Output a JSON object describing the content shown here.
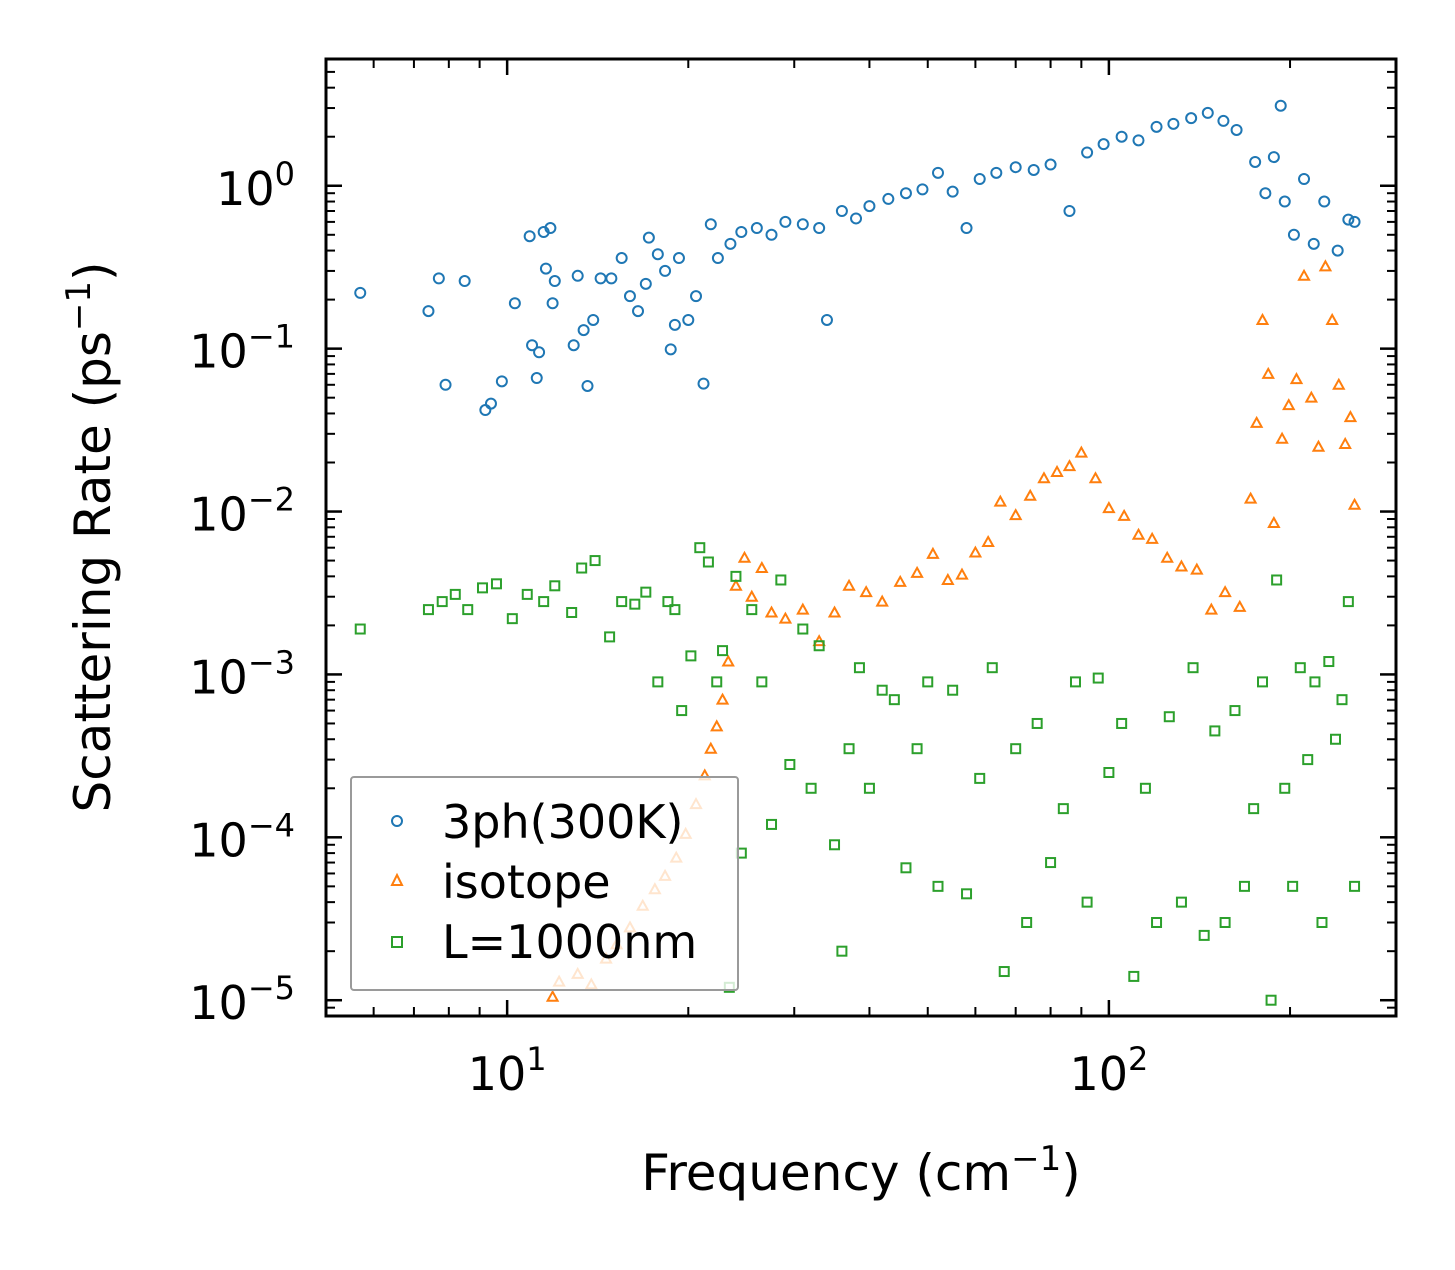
{
  "chart_data": {
    "type": "scatter",
    "xscale": "log",
    "yscale": "log",
    "xlim": [
      5.0,
      300.0
    ],
    "ylim": [
      8e-06,
      6.0
    ],
    "xlabel_main": "Frequency (cm",
    "xlabel_sup": "−1",
    "xlabel_end": ")",
    "ylabel_main": "Scattering Rate (ps",
    "ylabel_sup": "−1",
    "ylabel_end": ")",
    "x_ticks": [
      {
        "value": 10,
        "base": "10",
        "exp": "1"
      },
      {
        "value": 100,
        "base": "10",
        "exp": "2"
      }
    ],
    "y_ticks": [
      {
        "value": 1,
        "base": "10",
        "exp": "0"
      },
      {
        "value": 0.1,
        "base": "10",
        "exp": "−1"
      },
      {
        "value": 0.01,
        "base": "10",
        "exp": "−2"
      },
      {
        "value": 0.001,
        "base": "10",
        "exp": "−3"
      },
      {
        "value": 0.0001,
        "base": "10",
        "exp": "−4"
      },
      {
        "value": 1e-05,
        "base": "10",
        "exp": "−5"
      }
    ],
    "legend_position": "lower-left",
    "series": [
      {
        "name": "3ph(300K)",
        "marker": "circle",
        "color": "#1f77b4",
        "points": [
          [
            5.7,
            0.22
          ],
          [
            7.4,
            0.17
          ],
          [
            7.7,
            0.27
          ],
          [
            7.9,
            0.06
          ],
          [
            8.5,
            0.26
          ],
          [
            9.2,
            0.042
          ],
          [
            9.4,
            0.046
          ],
          [
            9.8,
            0.063
          ],
          [
            10.3,
            0.19
          ],
          [
            10.9,
            0.49
          ],
          [
            11.0,
            0.105
          ],
          [
            11.2,
            0.066
          ],
          [
            11.3,
            0.095
          ],
          [
            11.5,
            0.52
          ],
          [
            11.6,
            0.31
          ],
          [
            11.8,
            0.55
          ],
          [
            11.9,
            0.19
          ],
          [
            12.0,
            0.26
          ],
          [
            12.9,
            0.105
          ],
          [
            13.1,
            0.28
          ],
          [
            13.4,
            0.13
          ],
          [
            13.6,
            0.059
          ],
          [
            13.9,
            0.15
          ],
          [
            14.3,
            0.27
          ],
          [
            14.9,
            0.27
          ],
          [
            15.5,
            0.36
          ],
          [
            16.0,
            0.21
          ],
          [
            16.5,
            0.17
          ],
          [
            17.0,
            0.25
          ],
          [
            17.2,
            0.48
          ],
          [
            17.8,
            0.38
          ],
          [
            18.3,
            0.3
          ],
          [
            18.7,
            0.099
          ],
          [
            19.0,
            0.14
          ],
          [
            19.3,
            0.36
          ],
          [
            20.0,
            0.15
          ],
          [
            20.6,
            0.21
          ],
          [
            21.2,
            0.061
          ],
          [
            21.8,
            0.58
          ],
          [
            22.4,
            0.36
          ],
          [
            23.5,
            0.44
          ],
          [
            24.5,
            0.52
          ],
          [
            26.0,
            0.55
          ],
          [
            27.5,
            0.5
          ],
          [
            29.0,
            0.6
          ],
          [
            31.0,
            0.58
          ],
          [
            33.0,
            0.55
          ],
          [
            34.0,
            0.15
          ],
          [
            36.0,
            0.7
          ],
          [
            38.0,
            0.63
          ],
          [
            40.0,
            0.75
          ],
          [
            43.0,
            0.83
          ],
          [
            46.0,
            0.9
          ],
          [
            49.0,
            0.95
          ],
          [
            52.0,
            1.2
          ],
          [
            55.0,
            0.92
          ],
          [
            58.0,
            0.55
          ],
          [
            61.0,
            1.1
          ],
          [
            65.0,
            1.2
          ],
          [
            70.0,
            1.3
          ],
          [
            75.0,
            1.25
          ],
          [
            80.0,
            1.35
          ],
          [
            86.0,
            0.7
          ],
          [
            92.0,
            1.6
          ],
          [
            98.0,
            1.8
          ],
          [
            105.0,
            2.0
          ],
          [
            112.0,
            1.9
          ],
          [
            120.0,
            2.3
          ],
          [
            128.0,
            2.4
          ],
          [
            137.0,
            2.6
          ],
          [
            146.0,
            2.8
          ],
          [
            155.0,
            2.5
          ],
          [
            163.0,
            2.2
          ],
          [
            175.0,
            1.4
          ],
          [
            182.0,
            0.9
          ],
          [
            188.0,
            1.5
          ],
          [
            193.0,
            3.1
          ],
          [
            196.0,
            0.8
          ],
          [
            203.0,
            0.5
          ],
          [
            211.0,
            1.1
          ],
          [
            219.0,
            0.44
          ],
          [
            228.0,
            0.8
          ],
          [
            240.0,
            0.4
          ],
          [
            250.0,
            0.62
          ],
          [
            256.0,
            0.6
          ]
        ]
      },
      {
        "name": "isotope",
        "marker": "triangle",
        "color": "#ff7f0e",
        "points": [
          [
            11.9,
            1.05e-05
          ],
          [
            12.2,
            1.3e-05
          ],
          [
            13.1,
            1.45e-05
          ],
          [
            13.8,
            1.25e-05
          ],
          [
            14.6,
            1.8e-05
          ],
          [
            15.2,
            2.2e-05
          ],
          [
            16.0,
            2.8e-05
          ],
          [
            16.8,
            3.8e-05
          ],
          [
            17.6,
            4.8e-05
          ],
          [
            18.3,
            5.8e-05
          ],
          [
            19.1,
            7.5e-05
          ],
          [
            19.8,
            0.000105
          ],
          [
            20.6,
            0.00016
          ],
          [
            21.3,
            0.00024
          ],
          [
            21.8,
            0.00035
          ],
          [
            22.3,
            0.00048
          ],
          [
            22.8,
            0.0007
          ],
          [
            23.3,
            0.0012
          ],
          [
            24.0,
            0.0035
          ],
          [
            24.8,
            0.0052
          ],
          [
            25.5,
            0.003
          ],
          [
            26.5,
            0.0045
          ],
          [
            27.5,
            0.0024
          ],
          [
            29.0,
            0.0022
          ],
          [
            31.0,
            0.0025
          ],
          [
            33.0,
            0.0016
          ],
          [
            35.0,
            0.0024
          ],
          [
            37.0,
            0.0035
          ],
          [
            39.5,
            0.0032
          ],
          [
            42.0,
            0.0028
          ],
          [
            45.0,
            0.0037
          ],
          [
            48.0,
            0.0042
          ],
          [
            51.0,
            0.0055
          ],
          [
            54.0,
            0.0038
          ],
          [
            57.0,
            0.0041
          ],
          [
            60.0,
            0.0056
          ],
          [
            63.0,
            0.0065
          ],
          [
            66.0,
            0.0115
          ],
          [
            70.0,
            0.0095
          ],
          [
            74.0,
            0.0125
          ],
          [
            78.0,
            0.016
          ],
          [
            82.0,
            0.0175
          ],
          [
            86.0,
            0.019
          ],
          [
            90.0,
            0.023
          ],
          [
            95.0,
            0.016
          ],
          [
            100.0,
            0.0105
          ],
          [
            106.0,
            0.0094
          ],
          [
            112.0,
            0.0072
          ],
          [
            118.0,
            0.0068
          ],
          [
            125.0,
            0.0052
          ],
          [
            132.0,
            0.0046
          ],
          [
            140.0,
            0.0044
          ],
          [
            148.0,
            0.0025
          ],
          [
            156.0,
            0.0032
          ],
          [
            165.0,
            0.0026
          ],
          [
            172.0,
            0.012
          ],
          [
            176.0,
            0.035
          ],
          [
            180.0,
            0.15
          ],
          [
            184.0,
            0.07
          ],
          [
            188.0,
            0.0085
          ],
          [
            194.0,
            0.028
          ],
          [
            199.0,
            0.045
          ],
          [
            205.0,
            0.065
          ],
          [
            211.0,
            0.28
          ],
          [
            217.0,
            0.05
          ],
          [
            223.0,
            0.025
          ],
          [
            229.0,
            0.32
          ],
          [
            235.0,
            0.15
          ],
          [
            241.0,
            0.06
          ],
          [
            247.0,
            0.026
          ],
          [
            252.0,
            0.038
          ],
          [
            256.0,
            0.011
          ]
        ]
      },
      {
        "name": "L=1000nm",
        "marker": "square",
        "color": "#2ca02c",
        "points": [
          [
            5.7,
            0.0019
          ],
          [
            7.4,
            0.0025
          ],
          [
            7.8,
            0.0028
          ],
          [
            8.2,
            0.0031
          ],
          [
            8.6,
            0.0025
          ],
          [
            9.1,
            0.0034
          ],
          [
            9.6,
            0.0036
          ],
          [
            10.2,
            0.0022
          ],
          [
            10.8,
            0.0031
          ],
          [
            11.5,
            0.0028
          ],
          [
            12.0,
            0.0035
          ],
          [
            12.8,
            0.0024
          ],
          [
            13.3,
            0.0045
          ],
          [
            14.0,
            0.005
          ],
          [
            14.8,
            0.0017
          ],
          [
            15.5,
            0.0028
          ],
          [
            16.3,
            0.0027
          ],
          [
            17.0,
            0.0032
          ],
          [
            17.8,
            0.0009
          ],
          [
            18.5,
            0.0028
          ],
          [
            19.0,
            0.0025
          ],
          [
            19.5,
            0.0006
          ],
          [
            20.2,
            0.0013
          ],
          [
            20.9,
            0.006
          ],
          [
            21.6,
            0.0049
          ],
          [
            22.3,
            0.0009
          ],
          [
            22.8,
            0.0014
          ],
          [
            23.4,
            1.2e-05
          ],
          [
            24.0,
            0.004
          ],
          [
            24.5,
            8e-05
          ],
          [
            25.5,
            0.0025
          ],
          [
            26.5,
            0.0009
          ],
          [
            27.5,
            0.00012
          ],
          [
            28.5,
            0.0038
          ],
          [
            29.5,
            0.00028
          ],
          [
            31.0,
            0.0019
          ],
          [
            32.0,
            0.0002
          ],
          [
            33.0,
            0.0015
          ],
          [
            35.0,
            9e-05
          ],
          [
            36.0,
            2e-05
          ],
          [
            37.0,
            0.00035
          ],
          [
            38.5,
            0.0011
          ],
          [
            40.0,
            0.0002
          ],
          [
            42.0,
            0.0008
          ],
          [
            44.0,
            0.0007
          ],
          [
            46.0,
            6.5e-05
          ],
          [
            48.0,
            0.00035
          ],
          [
            50.0,
            0.0009
          ],
          [
            52.0,
            5e-05
          ],
          [
            55.0,
            0.0008
          ],
          [
            58.0,
            4.5e-05
          ],
          [
            61.0,
            0.00023
          ],
          [
            64.0,
            0.0011
          ],
          [
            67.0,
            1.5e-05
          ],
          [
            70.0,
            0.00035
          ],
          [
            73.0,
            3e-05
          ],
          [
            76.0,
            0.0005
          ],
          [
            80.0,
            7e-05
          ],
          [
            84.0,
            0.00015
          ],
          [
            88.0,
            0.0009
          ],
          [
            92.0,
            4e-05
          ],
          [
            96.0,
            0.00095
          ],
          [
            100.0,
            0.00025
          ],
          [
            105.0,
            0.0005
          ],
          [
            110.0,
            1.4e-05
          ],
          [
            115.0,
            0.0002
          ],
          [
            120.0,
            3e-05
          ],
          [
            126.0,
            0.00055
          ],
          [
            132.0,
            4e-05
          ],
          [
            138.0,
            0.0011
          ],
          [
            144.0,
            2.5e-05
          ],
          [
            150.0,
            0.00045
          ],
          [
            156.0,
            3e-05
          ],
          [
            162.0,
            0.0006
          ],
          [
            168.0,
            5e-05
          ],
          [
            174.0,
            0.00015
          ],
          [
            180.0,
            0.0009
          ],
          [
            186.0,
            1e-05
          ],
          [
            190.0,
            0.0038
          ],
          [
            196.0,
            0.0002
          ],
          [
            202.0,
            5e-05
          ],
          [
            208.0,
            0.0011
          ],
          [
            214.0,
            0.0003
          ],
          [
            220.0,
            0.0009
          ],
          [
            226.0,
            3e-05
          ],
          [
            232.0,
            0.0012
          ],
          [
            238.0,
            0.0004
          ],
          [
            244.0,
            0.0007
          ],
          [
            250.0,
            0.0028
          ],
          [
            256.0,
            5e-05
          ]
        ]
      }
    ]
  }
}
